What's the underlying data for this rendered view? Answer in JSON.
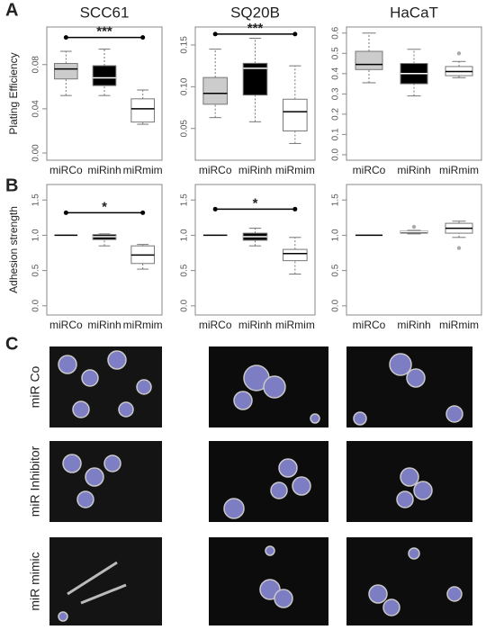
{
  "panel_labels": [
    "A",
    "B",
    "C"
  ],
  "image_rows": [
    "miR Co",
    "miR Inhibitor",
    "miR mimic"
  ],
  "chart_data": [
    {
      "type": "box",
      "title": "SCC61",
      "ylabel": "Plating Efficiency",
      "categories": [
        "miRCo",
        "miRinh",
        "miRmim"
      ],
      "ylim": [
        -0.0065,
        0.114
      ],
      "yticks": [
        {
          "value": 0,
          "label": "0.00"
        },
        {
          "value": 0.04,
          "label": "0.04"
        },
        {
          "value": 0.08,
          "label": "0.08"
        }
      ],
      "boxes": [
        {
          "low": 0.052,
          "q1": 0.067,
          "median": 0.076,
          "q3": 0.081,
          "high": 0.092,
          "outliers": [],
          "color": "#cccccc"
        },
        {
          "low": 0.052,
          "q1": 0.061,
          "median": 0.068,
          "q3": 0.079,
          "high": 0.094,
          "outliers": [],
          "color": "#000000"
        },
        {
          "low": 0.026,
          "q1": 0.028,
          "median": 0.04,
          "q3": 0.049,
          "high": 0.057,
          "outliers": [],
          "color": "#ffffff"
        }
      ],
      "significance": {
        "label": "***",
        "y": 0.1045
      }
    },
    {
      "type": "box",
      "title": "SQ20B",
      "categories": [
        "miRCo",
        "miRinh",
        "miRmim"
      ],
      "ylim": [
        0.012,
        0.1715
      ],
      "yticks": [
        0.05,
        {
          "value": 0.1,
          "label": "0.10"
        },
        0.15
      ],
      "boxes": [
        {
          "low": 0.063,
          "q1": 0.079,
          "median": 0.092,
          "q3": 0.111,
          "high": 0.145,
          "outliers": [],
          "color": "#cccccc"
        },
        {
          "low": 0.058,
          "q1": 0.09,
          "median": 0.122,
          "q3": 0.128,
          "high": 0.158,
          "outliers": [],
          "color": "#000000"
        },
        {
          "low": 0.032,
          "q1": 0.047,
          "median": 0.07,
          "q3": 0.085,
          "high": 0.125,
          "outliers": [],
          "color": "#ffffff"
        }
      ],
      "significance": {
        "label": "***",
        "y": 0.163
      }
    },
    {
      "type": "box",
      "title": "HaCaT",
      "categories": [
        "miRCo",
        "miRinh",
        "miRmim"
      ],
      "ylim": [
        -0.027,
        0.63
      ],
      "yticks": [
        {
          "value": 0,
          "label": "0.0"
        },
        0.1,
        0.2,
        0.3,
        0.4,
        0.5,
        0.6
      ],
      "boxes": [
        {
          "low": 0.355,
          "q1": 0.42,
          "median": 0.445,
          "q3": 0.51,
          "high": 0.6,
          "outliers": [],
          "color": "#cccccc"
        },
        {
          "low": 0.29,
          "q1": 0.35,
          "median": 0.4,
          "q3": 0.45,
          "high": 0.52,
          "outliers": [],
          "color": "#000000"
        },
        {
          "low": 0.38,
          "q1": 0.39,
          "median": 0.41,
          "q3": 0.435,
          "high": 0.46,
          "outliers": [
            0.5
          ],
          "color": "#ffffff"
        }
      ]
    },
    {
      "type": "box",
      "ylabel": "Adhesion strength",
      "categories": [
        "miRCo",
        "miRinh",
        "miRmim"
      ],
      "ylim": [
        -0.13,
        1.72
      ],
      "yticks": [
        {
          "value": 0,
          "label": "0.0"
        },
        0.5,
        {
          "value": 1,
          "label": "1.0"
        },
        1.5
      ],
      "boxes": [
        {
          "low": 1,
          "q1": 1,
          "median": 1,
          "q3": 1,
          "high": 1,
          "outliers": [],
          "color": "#cccccc"
        },
        {
          "low": 0.85,
          "q1": 0.94,
          "median": 0.98,
          "q3": 1.01,
          "high": 1.02,
          "outliers": [],
          "color": "#000000"
        },
        {
          "low": 0.52,
          "q1": 0.6,
          "median": 0.72,
          "q3": 0.85,
          "high": 0.87,
          "outliers": [],
          "color": "#ffffff"
        }
      ],
      "significance": {
        "label": "*",
        "y": 1.32
      }
    },
    {
      "type": "box",
      "categories": [
        "miRCo",
        "miRinh",
        "miRmim"
      ],
      "ylim": [
        -0.13,
        1.72
      ],
      "yticks": [
        {
          "value": 0,
          "label": "0.0"
        },
        0.5,
        {
          "value": 1,
          "label": "1.0"
        },
        1.5
      ],
      "boxes": [
        {
          "low": 1,
          "q1": 1,
          "median": 1,
          "q3": 1,
          "high": 1,
          "outliers": [],
          "color": "#cccccc"
        },
        {
          "low": 0.85,
          "q1": 0.93,
          "median": 0.98,
          "q3": 1.03,
          "high": 1.1,
          "outliers": [],
          "color": "#000000"
        },
        {
          "low": 0.45,
          "q1": 0.64,
          "median": 0.74,
          "q3": 0.8,
          "high": 0.97,
          "outliers": [],
          "color": "#ffffff"
        }
      ],
      "significance": {
        "label": "*",
        "y": 1.37
      }
    },
    {
      "type": "box",
      "categories": [
        "miRCo",
        "miRinh",
        "miRmim"
      ],
      "ylim": [
        -0.13,
        1.72
      ],
      "yticks": [
        {
          "value": 0,
          "label": "0.0"
        },
        0.5,
        {
          "value": 1,
          "label": "1.0"
        },
        1.5
      ],
      "boxes": [
        {
          "low": 1,
          "q1": 1,
          "median": 1,
          "q3": 1,
          "high": 1,
          "outliers": [],
          "color": "#cccccc"
        },
        {
          "low": 1.02,
          "q1": 1.03,
          "median": 1.05,
          "q3": 1.06,
          "high": 1.07,
          "outliers": [
            1.12
          ],
          "color": "#000000"
        },
        {
          "low": 0.97,
          "q1": 1.03,
          "median": 1.1,
          "q3": 1.17,
          "high": 1.2,
          "outliers": [
            0.82
          ],
          "color": "#ffffff"
        }
      ]
    }
  ]
}
